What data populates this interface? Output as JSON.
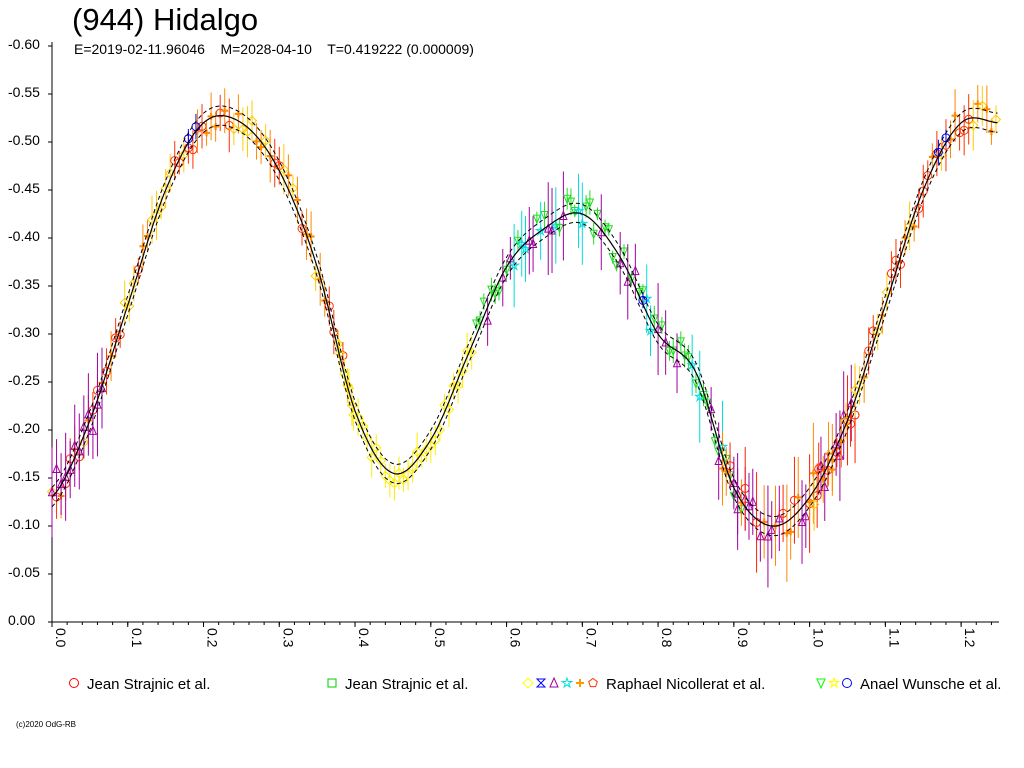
{
  "title": "(944) Hidalgo",
  "subtitle": "E=2019-02-11.96046    M=2028-04-10    T=0.419222 (0.000009)",
  "copyright": "(c)2020 OdG-RB",
  "chart_data": {
    "type": "scatter",
    "xlim": [
      0.0,
      1.25
    ],
    "ylim": [
      0.0,
      -0.6
    ],
    "y_reversed": true,
    "x_ticks": [
      "0.0",
      "0.1",
      "0.2",
      "0.3",
      "0.4",
      "0.5",
      "0.6",
      "0.7",
      "0.8",
      "0.9",
      "1.0",
      "1.1",
      "1.2"
    ],
    "y_ticks": [
      "-0.60",
      "-0.55",
      "-0.50",
      "-0.45",
      "-0.40",
      "-0.35",
      "-0.30",
      "-0.25",
      "-0.20",
      "-0.15",
      "-0.10",
      "-0.05",
      "0.00"
    ],
    "fit_curve": {
      "x": [
        0.0,
        0.05,
        0.1,
        0.15,
        0.2,
        0.25,
        0.3,
        0.35,
        0.4,
        0.45,
        0.5,
        0.55,
        0.6,
        0.65,
        0.7,
        0.75,
        0.8,
        0.85,
        0.9,
        0.95,
        1.0,
        1.05,
        1.1,
        1.15,
        1.2,
        1.25
      ],
      "y": [
        -0.13,
        -0.21,
        -0.33,
        -0.45,
        -0.52,
        -0.52,
        -0.47,
        -0.37,
        -0.22,
        -0.155,
        -0.19,
        -0.28,
        -0.37,
        -0.41,
        -0.425,
        -0.38,
        -0.3,
        -0.26,
        -0.14,
        -0.1,
        -0.13,
        -0.21,
        -0.33,
        -0.45,
        -0.52,
        -0.52
      ],
      "color": "#000000"
    },
    "series": [
      {
        "name": "Jean Strajnic et al.",
        "symbol": "circle",
        "colors": [
          "#ff0000"
        ],
        "x_range": [
          0.05,
          1.25
        ],
        "y_range": [
          -0.55,
          -0.17
        ]
      },
      {
        "name": "Jean Strajnic et al.",
        "symbol": "square",
        "colors": [
          "#00cc00"
        ],
        "x_range": [
          0.56,
          0.7
        ],
        "y_range": [
          -0.43,
          -0.36
        ]
      },
      {
        "name": "Raphael Nicollerat et al.",
        "symbol": "diamond, hourglass, triangle, star, cross, pentagon",
        "colors": [
          "#ffff00",
          "#0000ff",
          "#a000a0",
          "#00e0e0",
          "#ff9900",
          "#ff3300"
        ],
        "x_range": [
          0.0,
          1.25
        ],
        "y_range": [
          -0.55,
          -0.06
        ]
      },
      {
        "name": "Anael Wunsche et al.",
        "symbol": "down-triangle, star, circle",
        "colors": [
          "#00ff00",
          "#ffff00",
          "#0000ff"
        ],
        "x_range": [
          0.55,
          0.96
        ],
        "y_range": [
          -0.44,
          -0.08
        ]
      }
    ],
    "legend": [
      {
        "symbols": [
          {
            "shape": "circle",
            "color": "#ff0000"
          }
        ],
        "label": "Jean Strajnic et al."
      },
      {
        "symbols": [
          {
            "shape": "square",
            "color": "#00cc00"
          }
        ],
        "label": "Jean Strajnic et al."
      },
      {
        "symbols": [
          {
            "shape": "diamond",
            "color": "#ffff00"
          },
          {
            "shape": "hourglass",
            "color": "#0000ff"
          },
          {
            "shape": "triangle",
            "color": "#a000a0"
          },
          {
            "shape": "star",
            "color": "#00e0e0"
          },
          {
            "shape": "cross",
            "color": "#ff9900"
          },
          {
            "shape": "pentagon",
            "color": "#ff3300"
          }
        ],
        "label": "Raphael Nicollerat et al."
      },
      {
        "symbols": [
          {
            "shape": "downtriangle",
            "color": "#00ff00"
          },
          {
            "shape": "star",
            "color": "#ffff00"
          },
          {
            "shape": "circle",
            "color": "#0000ff"
          }
        ],
        "label": "Anael Wunsche et al."
      }
    ],
    "legend_placement": "bottom",
    "grid": false
  }
}
